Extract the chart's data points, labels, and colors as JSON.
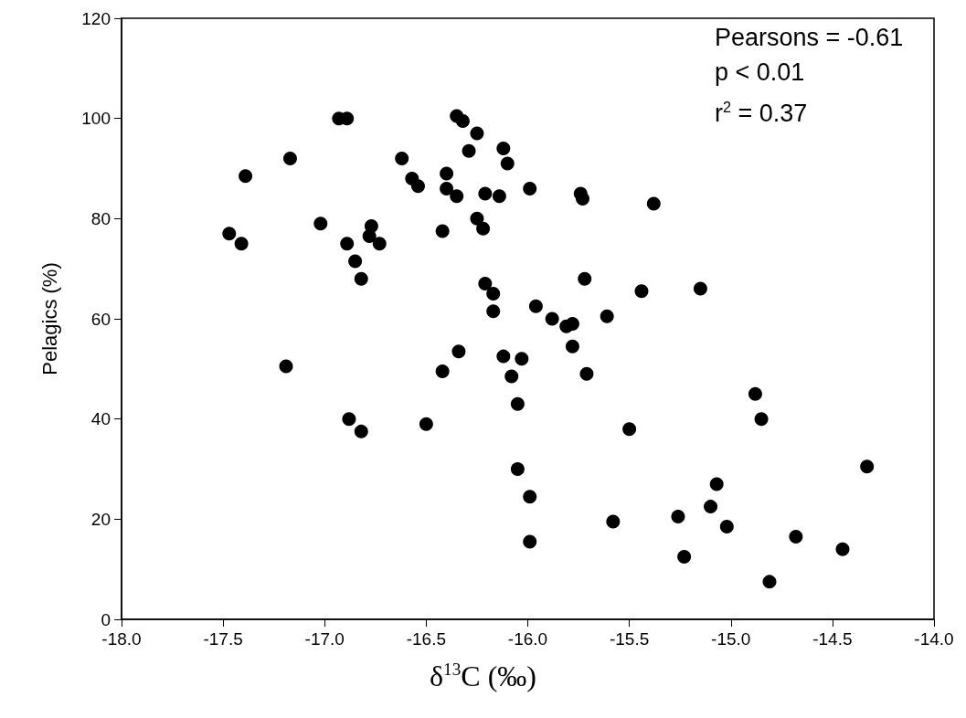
{
  "chart_data": {
    "type": "scatter",
    "xlabel": "δ$^{13}$C (‰)",
    "ylabel": "Pelagics (%)",
    "annotations": [
      "Pearsons = -0.61",
      "p < 0.01",
      "r$^{2}$ = 0.37"
    ],
    "xlim": [
      -18,
      -14
    ],
    "ylim": [
      0,
      120
    ],
    "xticks": [
      {
        "value": -18,
        "label": "-18.0"
      },
      {
        "value": -17.5,
        "label": "-17.5"
      },
      {
        "value": -17,
        "label": "-17.0"
      },
      {
        "value": -16.5,
        "label": "-16.5"
      },
      {
        "value": -16,
        "label": "-16.0"
      },
      {
        "value": -15.5,
        "label": "-15.5"
      },
      {
        "value": -15,
        "label": "-15.0"
      },
      {
        "value": -14.5,
        "label": "-14.5"
      },
      {
        "value": -14,
        "label": "-14.0"
      }
    ],
    "yticks": [
      0,
      20,
      40,
      60,
      80,
      100,
      120
    ],
    "grid": false,
    "marker": "circle",
    "series": [
      {
        "color": "#000000",
        "x": [
          -17.47,
          -17.41,
          -17.39,
          -17.17,
          -17.19,
          -17.02,
          -16.93,
          -16.89,
          -16.89,
          -16.85,
          -16.82,
          -16.78,
          -16.77,
          -16.73,
          -16.88,
          -16.82,
          -16.62,
          -16.57,
          -16.54,
          -16.5,
          -16.42,
          -16.42,
          -16.4,
          -16.4,
          -16.35,
          -16.35,
          -16.32,
          -16.29,
          -16.25,
          -16.25,
          -16.22,
          -16.21,
          -16.21,
          -16.34,
          -16.17,
          -16.17,
          -16.14,
          -16.12,
          -16.1,
          -16.12,
          -16.08,
          -16.05,
          -16.05,
          -16.03,
          -15.99,
          -15.99,
          -15.99,
          -15.96,
          -15.88,
          -15.81,
          -15.78,
          -15.78,
          -15.74,
          -15.73,
          -15.72,
          -15.71,
          -15.61,
          -15.58,
          -15.5,
          -15.44,
          -15.38,
          -15.26,
          -15.23,
          -15.15,
          -15.1,
          -15.07,
          -15.02,
          -14.88,
          -14.85,
          -14.81,
          -14.68,
          -14.45,
          -14.33
        ],
        "values": [
          77,
          75,
          88.5,
          92,
          50.5,
          79,
          100,
          100,
          75,
          71.5,
          68,
          76.5,
          78.5,
          75,
          40,
          37.5,
          92,
          88,
          86.5,
          39,
          77.5,
          49.5,
          89,
          86,
          100.5,
          84.5,
          99.5,
          93.5,
          97,
          80,
          78,
          85,
          67,
          53.5,
          65,
          61.5,
          84.5,
          94,
          91,
          52.5,
          48.5,
          43,
          30,
          52,
          86,
          24.5,
          15.5,
          62.5,
          60,
          58.5,
          59,
          54.5,
          85,
          84,
          68,
          49,
          60.5,
          19.5,
          38,
          65.5,
          83,
          20.5,
          12.5,
          66,
          22.5,
          27,
          18.5,
          45,
          40,
          7.5,
          16.5,
          14,
          30.5
        ]
      }
    ]
  }
}
